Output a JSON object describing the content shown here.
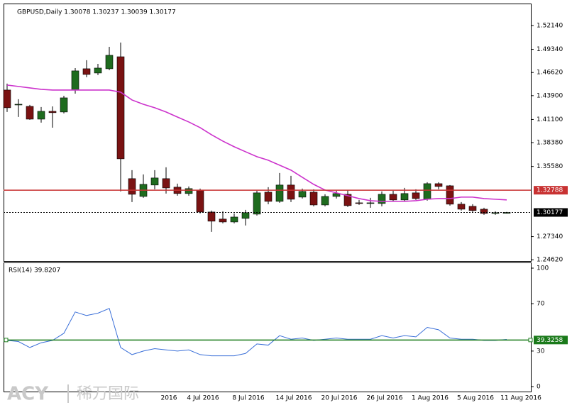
{
  "chart_data": [
    {
      "type": "candlestick",
      "title": "GBPUSD,Daily  1.30078 1.30237 1.30039 1.30177",
      "categories": [
        null,
        null,
        null,
        null,
        null,
        null,
        null,
        null,
        null,
        null,
        null,
        null,
        null,
        null,
        "2016",
        null,
        null,
        "4 Jul 2016",
        null,
        null,
        null,
        "8 Jul 2016",
        null,
        null,
        null,
        "14 Jul 2016",
        null,
        null,
        null,
        "20 Jul 2016",
        null,
        null,
        null,
        "26 Jul 2016",
        null,
        null,
        null,
        "1 Aug 2016",
        null,
        null,
        null,
        "5 Aug 2016",
        null,
        null,
        null,
        "11 Aug 2016"
      ],
      "open": [
        1.4456,
        1.4281,
        1.4264,
        1.4114,
        1.4206,
        1.4198,
        1.4456,
        1.4706,
        1.4656,
        1.4706,
        1.4847,
        1.3415,
        1.3206,
        1.334,
        1.3415,
        1.3315,
        1.324,
        1.3281,
        1.3023,
        1.294,
        1.2906,
        1.2948,
        1.2998,
        1.3256,
        1.3148,
        1.334,
        1.3198,
        1.3256,
        1.3106,
        1.3206,
        1.3231,
        1.3131,
        1.3123,
        1.3123,
        1.3231,
        1.3165,
        1.3248,
        1.3173,
        1.3356,
        1.3331,
        1.3115,
        1.309,
        1.3056,
        1.3006,
        1.30078,
        null
      ],
      "high": [
        1.4531,
        1.4348,
        1.4281,
        1.4256,
        1.4264,
        1.4389,
        1.4714,
        1.4806,
        1.4764,
        1.4964,
        1.5014,
        1.3515,
        1.3465,
        1.3515,
        1.3548,
        1.3356,
        1.3323,
        1.3298,
        1.304,
        1.3031,
        1.3006,
        1.3048,
        1.3273,
        1.3315,
        1.3481,
        1.3448,
        1.3298,
        1.329,
        1.3231,
        1.3273,
        1.3281,
        1.3165,
        1.319,
        1.3265,
        1.3273,
        1.3306,
        1.329,
        1.3373,
        1.3373,
        1.334,
        1.314,
        1.3115,
        1.3073,
        1.3031,
        1.30237,
        null
      ],
      "low": [
        1.4198,
        1.414,
        1.4106,
        1.4073,
        1.4014,
        1.4181,
        1.4414,
        1.4606,
        1.4631,
        1.4689,
        1.3265,
        1.314,
        1.319,
        1.329,
        1.324,
        1.3215,
        1.3215,
        1.3006,
        1.279,
        1.289,
        1.289,
        1.2865,
        1.2981,
        1.3114,
        1.3131,
        1.314,
        1.3181,
        1.309,
        1.309,
        1.3181,
        1.3081,
        1.3106,
        1.3073,
        1.309,
        1.3148,
        1.3148,
        1.3165,
        1.3156,
        1.329,
        1.3098,
        1.304,
        1.3023,
        1.299,
        1.299,
        1.30039,
        null
      ],
      "close": [
        1.4248,
        1.4289,
        1.4114,
        1.4206,
        1.419,
        1.4364,
        1.4681,
        1.4639,
        1.4714,
        1.4864,
        1.3648,
        1.3231,
        1.3348,
        1.3423,
        1.3306,
        1.324,
        1.3298,
        1.3023,
        1.2915,
        1.2906,
        1.2964,
        1.3015,
        1.3248,
        1.3148,
        1.334,
        1.3173,
        1.3265,
        1.3106,
        1.3206,
        1.324,
        1.3098,
        1.3123,
        1.3131,
        1.3231,
        1.3165,
        1.324,
        1.3181,
        1.3356,
        1.3323,
        1.3115,
        1.3056,
        1.304,
        1.3006,
        1.3015,
        1.30177,
        null
      ],
      "up_color": "#1e6b1e",
      "down_color": "#7a1212",
      "wick_color": "#000000",
      "overlay": {
        "color": "#cc33cc",
        "values": [
          1.4514,
          1.4498,
          1.4481,
          1.4464,
          1.4456,
          1.4456,
          1.4456,
          1.4456,
          1.4456,
          1.4456,
          1.4431,
          1.4339,
          1.4289,
          1.4248,
          1.4198,
          1.4139,
          1.4081,
          1.4014,
          1.3931,
          1.3856,
          1.379,
          1.3731,
          1.3673,
          1.3631,
          1.3573,
          1.3515,
          1.3431,
          1.3348,
          1.3281,
          1.3248,
          1.3215,
          1.3181,
          1.3156,
          1.3148,
          1.3148,
          1.3148,
          1.3156,
          1.3173,
          1.3181,
          1.3181,
          1.3198,
          1.3198,
          1.3181,
          1.3173,
          1.3165,
          null
        ]
      },
      "ylim": [
        1.2447,
        1.5472
      ],
      "yticks": [
        {
          "value": 1.5214,
          "label": "1.52140"
        },
        {
          "value": 1.4934,
          "label": "1.49340"
        },
        {
          "value": 1.4662,
          "label": "1.46620"
        },
        {
          "value": 1.439,
          "label": "1.43900"
        },
        {
          "value": 1.411,
          "label": "1.41100"
        },
        {
          "value": 1.3838,
          "label": "1.38380"
        },
        {
          "value": 1.3558,
          "label": "1.35580"
        },
        {
          "value": 1.2734,
          "label": "1.27340"
        },
        {
          "value": 1.2462,
          "label": "1.24620"
        }
      ],
      "hlines": [
        {
          "value": 1.32788,
          "label": "1.32788",
          "color": "#c83232",
          "style": "solid"
        },
        {
          "value": 1.30177,
          "label": "1.30177",
          "color": "#000000",
          "style": "dashed"
        }
      ]
    },
    {
      "type": "line",
      "title": "RSI(14) 39.8207",
      "values": [
        39,
        38,
        33,
        37,
        39,
        45,
        63,
        60,
        62,
        66,
        33,
        27,
        30,
        32,
        31,
        30,
        31,
        27,
        26,
        26,
        26,
        28,
        36,
        35,
        43,
        40,
        41,
        39,
        40,
        41,
        40,
        40,
        40,
        43,
        41,
        43,
        42,
        50,
        48,
        41,
        40,
        40,
        39,
        39,
        39.8207,
        null
      ],
      "color": "#3a6fd8",
      "ylim": [
        0,
        100
      ],
      "yticks": [
        100,
        70,
        30,
        0
      ],
      "hlines": [
        {
          "value": 39.3258,
          "label": "39.3258",
          "color": "#1a7a1a",
          "style": "solid"
        }
      ]
    }
  ],
  "watermark": {
    "brand": "ACY",
    "name": "稀万国际"
  }
}
